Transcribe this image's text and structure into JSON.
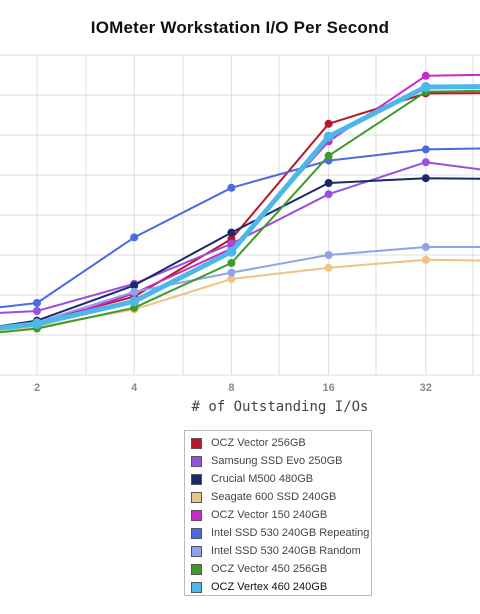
{
  "chart_data": {
    "type": "line",
    "title": "IOMeter Workstation I/O Per Second",
    "xlabel": "# of Outstanding I/Os",
    "ylabel": "",
    "x_scale": "log2",
    "x": [
      1,
      2,
      4,
      8,
      16,
      32,
      64
    ],
    "x_tick_labels": [
      "2",
      "4",
      "8",
      "16",
      "32"
    ],
    "ylim": [
      0,
      1
    ],
    "y_tick_labels": [],
    "grid": true,
    "legend_position": "bottom",
    "series": [
      {
        "name": "OCZ Vector 256GB",
        "color": "#b5182a",
        "values": [
          0.12,
          0.165,
          0.245,
          0.425,
          0.785,
          0.88,
          0.882
        ]
      },
      {
        "name": "Samsung SSD Evo 250GB",
        "color": "#9b4ee0",
        "values": [
          0.185,
          0.2,
          0.285,
          0.41,
          0.565,
          0.665,
          0.625
        ]
      },
      {
        "name": "Crucial M500 480GB",
        "color": "#182a6e",
        "values": [
          0.125,
          0.17,
          0.28,
          0.445,
          0.6,
          0.615,
          0.612
        ]
      },
      {
        "name": "Seagate 600 SSD 240GB",
        "color": "#eec387",
        "values": [
          0.125,
          0.15,
          0.205,
          0.3,
          0.335,
          0.36,
          0.356
        ]
      },
      {
        "name": "OCZ Vector 150 240GB",
        "color": "#c72bc7",
        "values": [
          0.14,
          0.155,
          0.255,
          0.395,
          0.73,
          0.935,
          0.94
        ]
      },
      {
        "name": "Intel SSD 530 240GB Repeating",
        "color": "#4b6ce0",
        "values": [
          0.19,
          0.225,
          0.43,
          0.585,
          0.67,
          0.705,
          0.71
        ]
      },
      {
        "name": "Intel SSD 530 240GB Random",
        "color": "#8fa3ea",
        "values": [
          0.13,
          0.165,
          0.26,
          0.32,
          0.375,
          0.4,
          0.4
        ]
      },
      {
        "name": "OCZ Vector 450 256GB",
        "color": "#3f9a2a",
        "values": [
          0.115,
          0.145,
          0.21,
          0.35,
          0.685,
          0.885,
          0.89
        ]
      },
      {
        "name": "OCZ Vertex 460 240GB",
        "color": "#4cb8ea",
        "values": [
          0.125,
          0.16,
          0.23,
          0.385,
          0.745,
          0.9,
          0.902
        ]
      }
    ]
  }
}
